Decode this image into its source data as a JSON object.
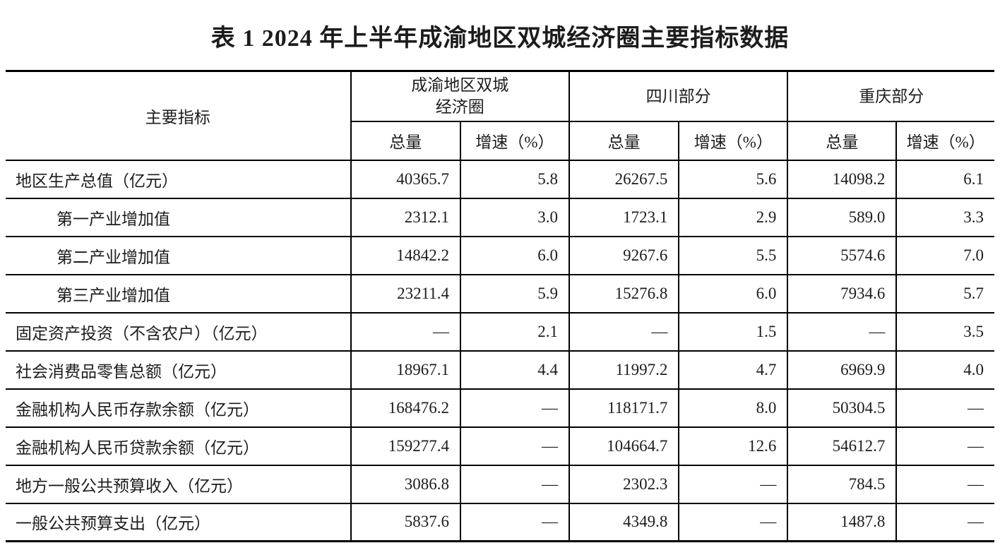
{
  "title": "表 1 2024 年上半年成渝地区双城经济圈主要指标数据",
  "colors": {
    "border": "#000000",
    "text": "#1c1c1c",
    "background": "#ffffff"
  },
  "table": {
    "indicator_header": "主要指标",
    "groups": [
      {
        "label": "成渝地区双城\n经济圈"
      },
      {
        "label": "四川部分"
      },
      {
        "label": "重庆部分"
      }
    ],
    "sub_headers": {
      "total": "总量",
      "growth": "增速（%）"
    },
    "rows": [
      {
        "label": "地区生产总值（亿元）",
        "indent": false,
        "values": [
          "40365.7",
          "5.8",
          "26267.5",
          "5.6",
          "14098.2",
          "6.1"
        ]
      },
      {
        "label": "第一产业增加值",
        "indent": true,
        "values": [
          "2312.1",
          "3.0",
          "1723.1",
          "2.9",
          "589.0",
          "3.3"
        ]
      },
      {
        "label": "第二产业增加值",
        "indent": true,
        "values": [
          "14842.2",
          "6.0",
          "9267.6",
          "5.5",
          "5574.6",
          "7.0"
        ]
      },
      {
        "label": "第三产业增加值",
        "indent": true,
        "values": [
          "23211.4",
          "5.9",
          "15276.8",
          "6.0",
          "7934.6",
          "5.7"
        ]
      },
      {
        "label": "固定资产投资（不含农户）（亿元）",
        "indent": false,
        "values": [
          "—",
          "2.1",
          "—",
          "1.5",
          "—",
          "3.5"
        ]
      },
      {
        "label": "社会消费品零售总额（亿元）",
        "indent": false,
        "values": [
          "18967.1",
          "4.4",
          "11997.2",
          "4.7",
          "6969.9",
          "4.0"
        ]
      },
      {
        "label": "金融机构人民币存款余额（亿元）",
        "indent": false,
        "values": [
          "168476.2",
          "—",
          "118171.7",
          "8.0",
          "50304.5",
          "—"
        ]
      },
      {
        "label": "金融机构人民币贷款余额（亿元）",
        "indent": false,
        "values": [
          "159277.4",
          "—",
          "104664.7",
          "12.6",
          "54612.7",
          "—"
        ]
      },
      {
        "label": "地方一般公共预算收入（亿元）",
        "indent": false,
        "values": [
          "3086.8",
          "—",
          "2302.3",
          "—",
          "784.5",
          "—"
        ]
      },
      {
        "label": "一般公共预算支出（亿元）",
        "indent": false,
        "values": [
          "5837.6",
          "—",
          "4349.8",
          "—",
          "1487.8",
          "—"
        ]
      }
    ]
  }
}
